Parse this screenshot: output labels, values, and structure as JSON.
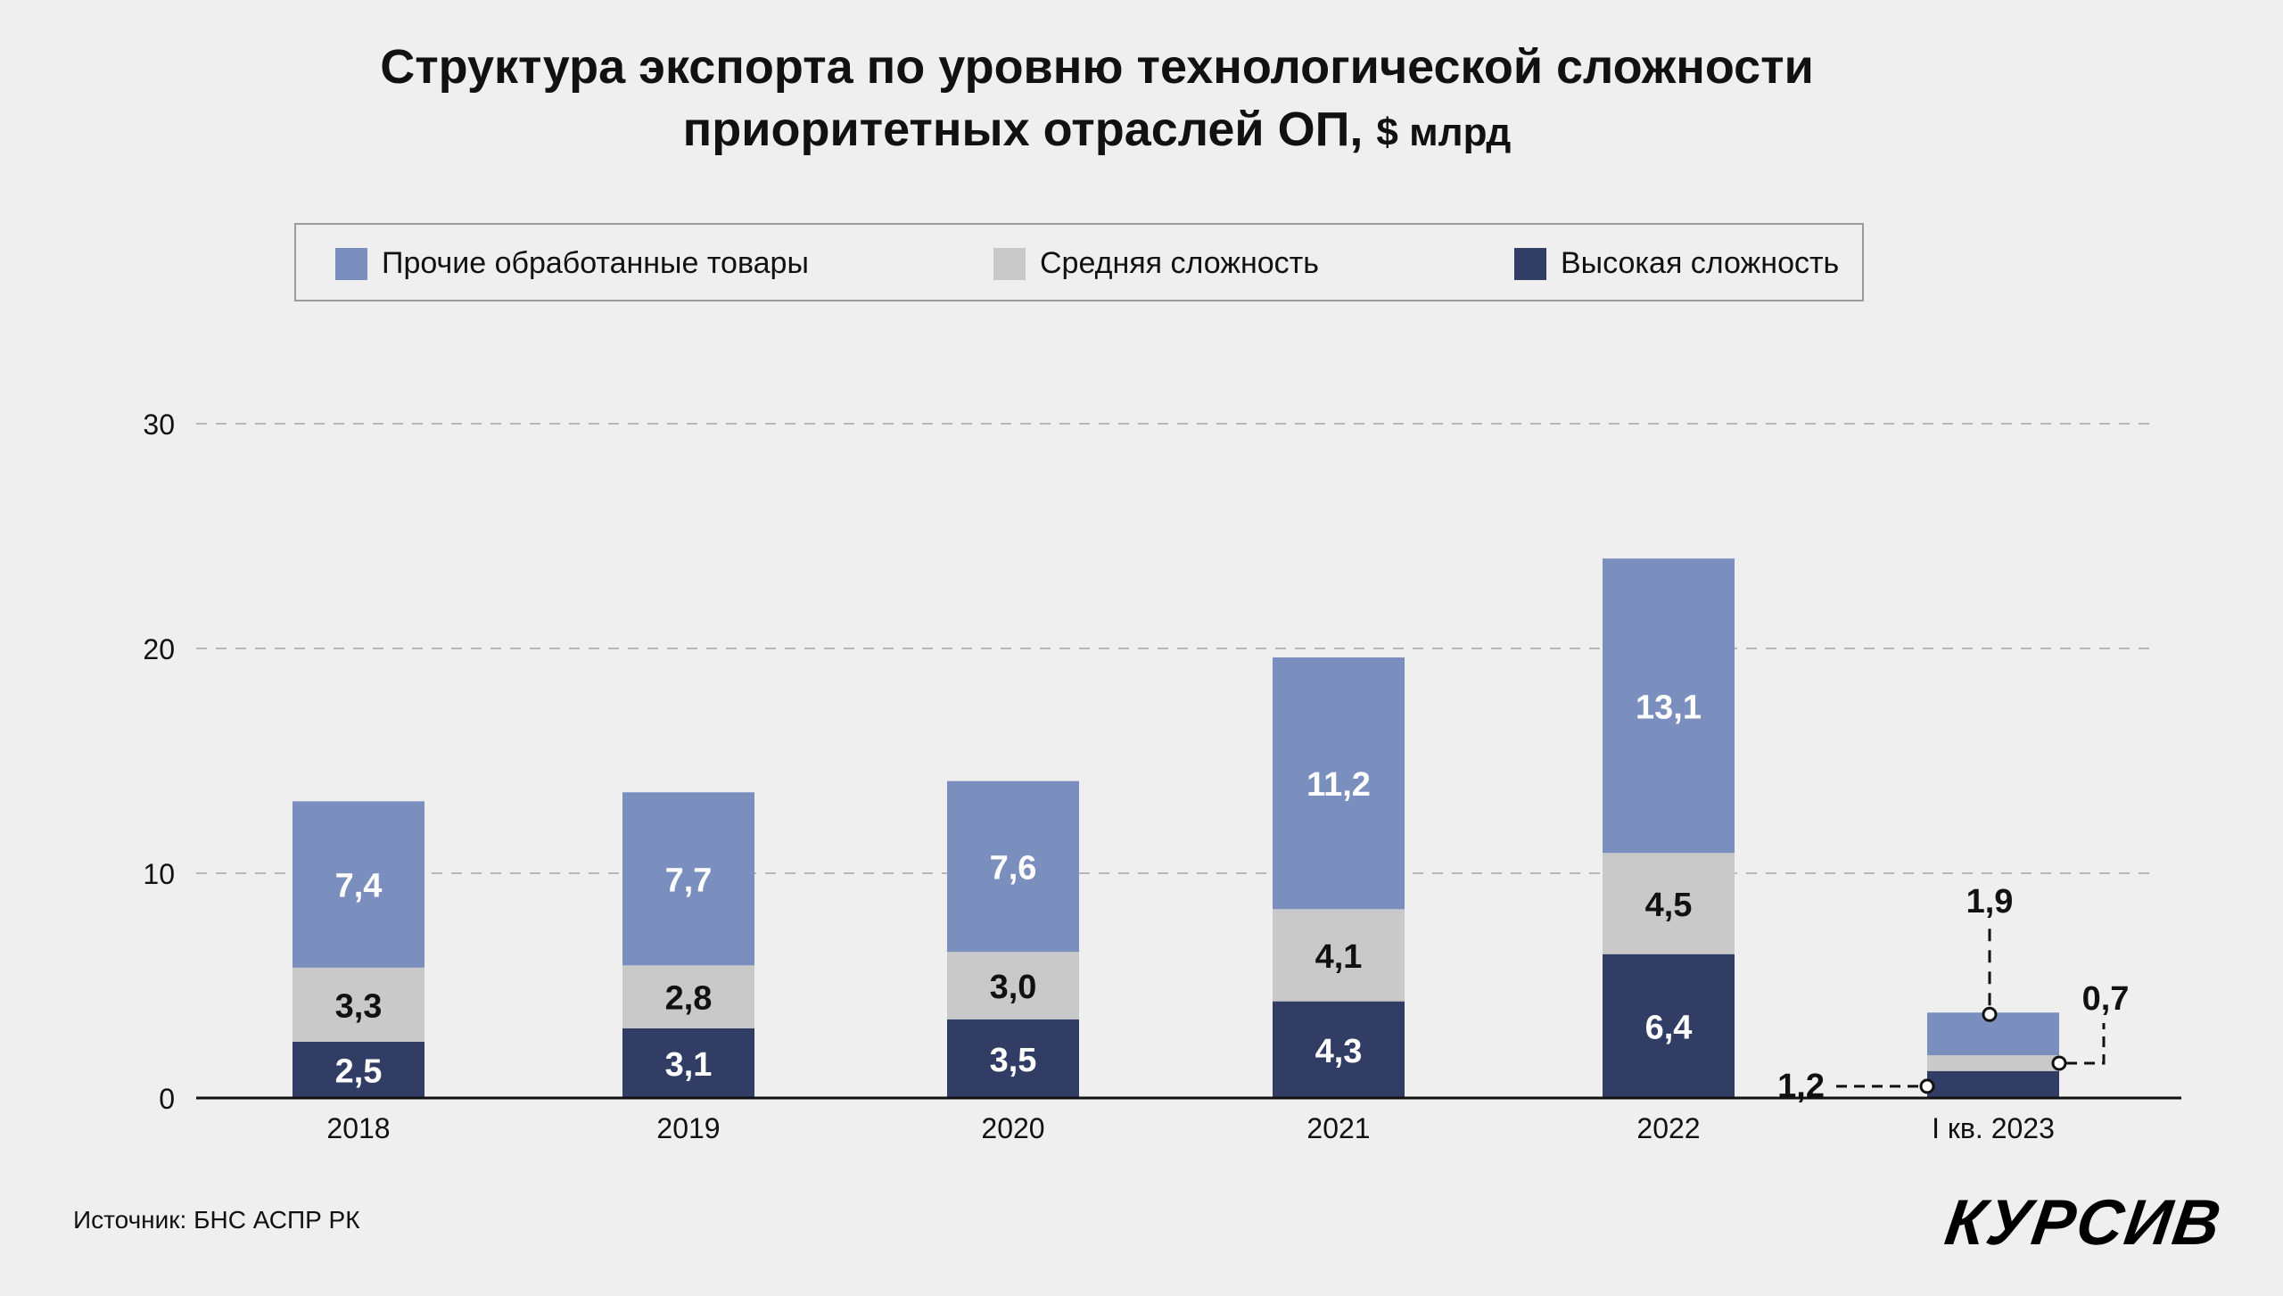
{
  "chart_data": {
    "type": "bar",
    "stacked": true,
    "title": "Структура экспорта по уровню технологической сложности",
    "title_line2": "приоритетных отраслей ОП,",
    "title_unit": "$ млрд",
    "categories": [
      "2018",
      "2019",
      "2020",
      "2021",
      "2022",
      "I кв. 2023"
    ],
    "series": [
      {
        "name": "Высокая сложность",
        "color": "#323d66",
        "values": [
          2.5,
          3.1,
          3.5,
          4.3,
          6.4,
          1.2
        ],
        "labels": [
          "2,5",
          "3,1",
          "3,5",
          "4,3",
          "6,4",
          "1,2"
        ]
      },
      {
        "name": "Средняя сложность",
        "color": "#c9c9c9",
        "values": [
          3.3,
          2.8,
          3.0,
          4.1,
          4.5,
          0.7
        ],
        "labels": [
          "3,3",
          "2,8",
          "3,0",
          "4,1",
          "4,5",
          "0,7"
        ]
      },
      {
        "name": "Прочие обработанные товары",
        "color": "#7b8fbe",
        "values": [
          7.4,
          7.7,
          7.6,
          11.2,
          13.1,
          1.9
        ],
        "labels": [
          "7,4",
          "7,7",
          "7,6",
          "11,2",
          "13,1",
          "1,9"
        ]
      }
    ],
    "legend_order": [
      "Прочие обработанные товары",
      "Средняя сложность",
      "Высокая сложность"
    ],
    "yticks": [
      "0",
      "10",
      "20",
      "30"
    ],
    "ytick_values": [
      0,
      10,
      20,
      30
    ],
    "ylim": [
      0,
      30
    ],
    "grid": true,
    "legend_position": "top",
    "xlabel": "",
    "ylabel": ""
  },
  "source": "Источник: БНС АСПР РК",
  "logo": "КУРСИВ"
}
